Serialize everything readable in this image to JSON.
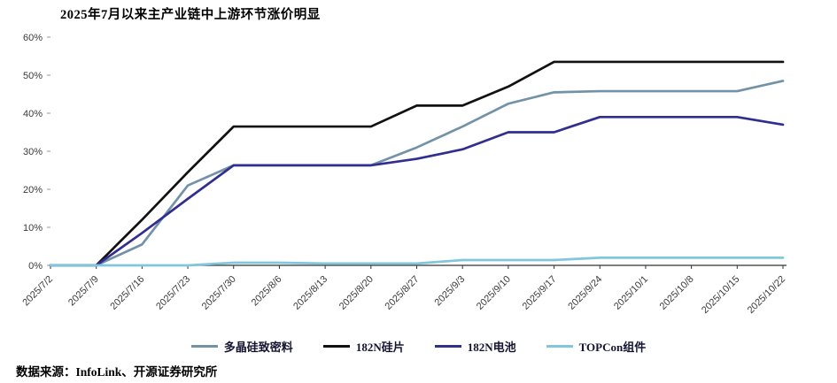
{
  "chart_data": {
    "type": "line",
    "title": "2025年7月以来主产业链中上游环节涨价明显",
    "categories": [
      "2025/7/2",
      "2025/7/9",
      "2025/7/16",
      "2025/7/23",
      "2025/7/30",
      "2025/8/6",
      "2025/8/13",
      "2025/8/20",
      "2025/8/27",
      "2025/9/3",
      "2025/9/10",
      "2025/9/17",
      "2025/9/24",
      "2025/10/1",
      "2025/10/8",
      "2025/10/15",
      "2025/10/22"
    ],
    "y_ticks": [
      "0%",
      "10%",
      "20%",
      "30%",
      "40%",
      "50%",
      "60%"
    ],
    "ylim": [
      0,
      60
    ],
    "grid": false,
    "legend_position": "bottom",
    "series": [
      {
        "name": "多晶硅致密料",
        "color": "#7292a8",
        "values": [
          0,
          0,
          5.5,
          21,
          26.3,
          26.3,
          26.3,
          26.3,
          31,
          36.5,
          42.5,
          45.5,
          45.8,
          45.8,
          45.8,
          45.8,
          48.5
        ]
      },
      {
        "name": "182N硅片",
        "color": "#111111",
        "values": [
          0,
          0,
          12,
          24.5,
          36.5,
          36.5,
          36.5,
          36.5,
          42,
          42,
          47,
          53.5,
          53.5,
          53.5,
          53.5,
          53.5,
          53.5
        ]
      },
      {
        "name": "182N电池",
        "color": "#312e90",
        "values": [
          0,
          0,
          8.5,
          17.5,
          26.3,
          26.3,
          26.3,
          26.3,
          28,
          30.5,
          35,
          35,
          39,
          39,
          39,
          39,
          37
        ]
      },
      {
        "name": "TOPCon组件",
        "color": "#82c6dd",
        "values": [
          0,
          0,
          0,
          0,
          0.7,
          0.7,
          0.5,
          0.5,
          0.5,
          1.4,
          1.4,
          1.4,
          2,
          2,
          2,
          2,
          2
        ]
      }
    ]
  },
  "footer": {
    "source": "数据来源：InfoLink、开源证券研究所"
  }
}
